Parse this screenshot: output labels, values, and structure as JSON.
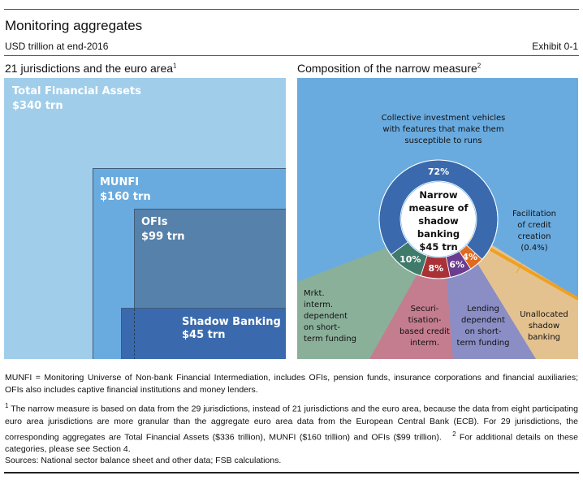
{
  "header": {
    "title": "Monitoring aggregates",
    "subtitle": "USD trillion at end-2016",
    "exhibit": "Exhibit 0-1"
  },
  "left_panel": {
    "title": "21 jurisdictions and the euro area",
    "title_sup": "1"
  },
  "right_panel": {
    "title": "Composition of the narrow measure",
    "title_sup": "2"
  },
  "chart_data": [
    {
      "type": "treemap",
      "title": "21 jurisdictions and the euro area",
      "items": [
        {
          "name": "Total Financial Assets",
          "value_label": "$340 trn",
          "value": 340,
          "color": "#a0cdea"
        },
        {
          "name": "MUNFI",
          "value_label": "$160 trn",
          "value": 160,
          "color": "#6aabdf"
        },
        {
          "name": "OFIs",
          "value_label": "$99 trn",
          "value": 99,
          "color": "#5681aa"
        },
        {
          "name": "Shadow Banking",
          "value_label": "$45 trn",
          "value": 45,
          "color": "#3a6aad"
        }
      ]
    },
    {
      "type": "pie",
      "title": "Composition of the narrow measure",
      "center_label": [
        "Narrow",
        "measure of",
        "shadow",
        "banking",
        "$45 trn"
      ],
      "slices": [
        {
          "name": "Collective investment vehicles with features that make them susceptible to runs",
          "value": 72,
          "label": "72%",
          "color": "#3a6aad",
          "area_color": "#6aabdf"
        },
        {
          "name": "Unallocated shadow banking",
          "value": 4,
          "label": "4%",
          "color": "#e06a20",
          "area_color": "#e4c290"
        },
        {
          "name": "Lending dependent on short-term funding",
          "value": 6,
          "label": "6%",
          "color": "#6a3d8e",
          "area_color": "#8a8ec4"
        },
        {
          "name": "Securi-tisation-based credit interm.",
          "value": 8,
          "label": "8%",
          "color": "#a83236",
          "area_color": "#c47d8e"
        },
        {
          "name": "Mrkt. interm. dependent on short-term funding",
          "value": 10,
          "label": "10%",
          "color": "#3f7a6a",
          "area_color": "#8ab09a"
        }
      ],
      "annotation": {
        "text": [
          "Facilitation",
          "of credit",
          "creation",
          "(0.4%)"
        ],
        "value": 0.4,
        "color": "#f0a020"
      }
    }
  ],
  "labels": {
    "cis": [
      "Collective investment vehicles",
      "with features that make them",
      "susceptible to runs"
    ],
    "mrkt": [
      "Mrkt.",
      "interm.",
      "dependent",
      "on short-",
      "term funding"
    ],
    "sec": [
      "Securi-",
      "tisation-",
      "based credit",
      "interm."
    ],
    "lend": [
      "Lending",
      "dependent",
      "on short-",
      "term funding"
    ],
    "unal": [
      "Unallocated",
      "shadow",
      "banking"
    ]
  },
  "footnotes": {
    "munfi": "MUNFI = Monitoring Universe of Non-bank Financial Intermediation, includes OFIs, pension funds, insurance corporations and financial auxiliaries; OFIs also includes captive financial institutions and money lenders.",
    "n1_mark": "1",
    "n1": " The narrow measure is based on data from the 29 jurisdictions, instead of 21 jurisdictions and the euro area, because the data from eight participating euro area jurisdictions are more granular than the aggregate euro area data from the European Central Bank (ECB). For 29 jurisdictions, the corresponding aggregates are Total Financial Assets ($336 trillion), MUNFI ($160 trillion) and OFIs ($99 trillion).",
    "n2_mark": "2",
    "n2": " For additional details on these categories, please see Section 4.",
    "sources": "Sources: National sector balance sheet and other data; FSB calculations."
  }
}
